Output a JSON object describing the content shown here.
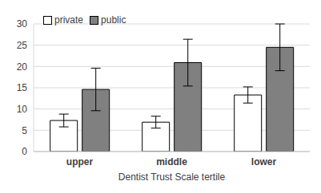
{
  "chart_data": {
    "type": "bar",
    "x_label": "Dentist Trust Scale tertile",
    "categories": [
      "upper",
      "middle",
      "lower"
    ],
    "series": [
      {
        "name": "private",
        "color": "#ffffff",
        "values": [
          7.3,
          6.9,
          13.3
        ],
        "errors": [
          1.5,
          1.4,
          1.9
        ]
      },
      {
        "name": "public",
        "color": "#808080",
        "values": [
          14.6,
          20.9,
          24.5
        ],
        "errors": [
          5.0,
          5.5,
          5.5
        ]
      }
    ],
    "ylim": [
      0,
      30
    ],
    "yticks": [
      0,
      5,
      10,
      15,
      20,
      25,
      30
    ],
    "grid": true,
    "legend": "upper left"
  }
}
